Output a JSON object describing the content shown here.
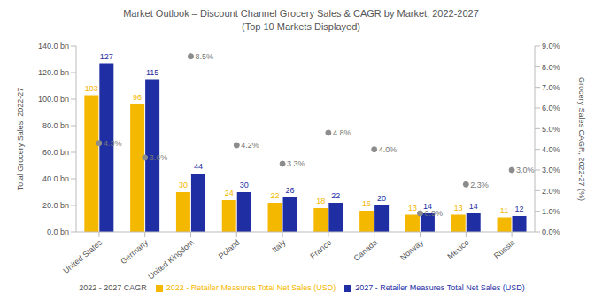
{
  "chart_data": {
    "type": "bar",
    "title": "Market Outlook – Discount Channel Grocery Sales & CAGR by Market, 2022-2027",
    "subtitle": "(Top 10 Markets Displayed)",
    "ylabel": "Total Grocery Sales, 2022-27",
    "y2label": "Grocery Sales CAGR, 2022-27 (%)",
    "categories": [
      "United States",
      "Germany",
      "United Kingdom",
      "Poland",
      "Italy",
      "France",
      "Canada",
      "Norway",
      "Mexico",
      "Russia"
    ],
    "series": [
      {
        "name": "2022 - Retailer Measures Total Net Sales (USD)",
        "type": "bar",
        "color": "#f5b800",
        "values": [
          103,
          96,
          30,
          24,
          22,
          18,
          16,
          13,
          13,
          11
        ]
      },
      {
        "name": "2027 - Retailer Measures Total Net Sales (USD)",
        "type": "bar",
        "color": "#1f2fa3",
        "values": [
          127,
          115,
          44,
          30,
          26,
          22,
          20,
          14,
          14,
          12
        ]
      },
      {
        "name": "2022 - 2027 CAGR",
        "type": "scatter",
        "marker": "circle",
        "axis": "y2",
        "color": "#8c8c8c",
        "values": [
          4.3,
          3.6,
          8.5,
          4.2,
          3.3,
          4.8,
          4.0,
          0.9,
          2.3,
          3.0
        ],
        "value_labels": [
          "4.3%",
          "3.6%",
          "8.5%",
          "4.2%",
          "3.3%",
          "4.8%",
          "4.0%",
          "0.9%",
          "2.3%",
          "3.0%"
        ]
      }
    ],
    "ylim": [
      0,
      140
    ],
    "yticks": [
      {
        "value": 0,
        "label": "0.0 bn"
      },
      {
        "value": 20,
        "label": "20.0 bn"
      },
      {
        "value": 40,
        "label": "40.0 bn"
      },
      {
        "value": 60,
        "label": "60.0 bn"
      },
      {
        "value": 80,
        "label": "80.0 bn"
      },
      {
        "value": 100,
        "label": "100.0 bn"
      },
      {
        "value": 120,
        "label": "120.0 bn"
      },
      {
        "value": 140,
        "label": "140.0 bn"
      }
    ],
    "y2lim": [
      0,
      9
    ],
    "y2ticks": [
      {
        "value": 0,
        "label": "0.0%"
      },
      {
        "value": 1,
        "label": "1.0%"
      },
      {
        "value": 2,
        "label": "2.0%"
      },
      {
        "value": 3,
        "label": "3.0%"
      },
      {
        "value": 4,
        "label": "4.0%"
      },
      {
        "value": 5,
        "label": "5.0%"
      },
      {
        "value": 6,
        "label": "6.0%"
      },
      {
        "value": 7,
        "label": "7.0%"
      },
      {
        "value": 8,
        "label": "8.0%"
      },
      {
        "value": 9,
        "label": "9.0%"
      }
    ],
    "grid": false,
    "legend": "bottom",
    "data_labels": true
  }
}
